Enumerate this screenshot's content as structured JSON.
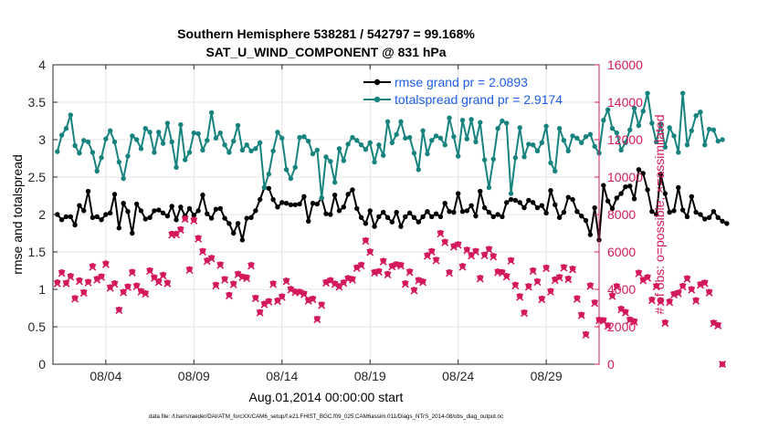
{
  "chart_data": {
    "type": "line",
    "title_line1": "Southern Hemisphere 538281 / 542797 = 99.168%",
    "title_line2": "SAT_U_WIND_COMPONENT @ 831 hPa",
    "xlabel": "Aug.01,2014 00:00:00 start",
    "ylabel_left": "rmse and totalspread",
    "ylabel_right": "# of obs: o=possible; ×=assimilated",
    "footnote": "data file: /Users/raeder/DAI/ATM_forcXX/CAM6_setup/f.e21.FHIST_BGC.f09_025.CAM6assim.011/Diags_NTrS_2014-08/obs_diag_output.nc",
    "xlim": [
      0,
      31
    ],
    "ylim_left": [
      0,
      4
    ],
    "ylim_right": [
      0,
      16000
    ],
    "x_ticks": [
      3,
      8,
      13,
      18,
      23,
      28
    ],
    "x_tick_labels": [
      "08/04",
      "08/09",
      "08/14",
      "08/19",
      "08/24",
      "08/29"
    ],
    "y_ticks_left": [
      0,
      0.5,
      1,
      1.5,
      2,
      2.5,
      3,
      3.5,
      4
    ],
    "y_tick_labels_left": [
      "0",
      "0.5",
      "1",
      "1.5",
      "2",
      "2.5",
      "3",
      "3.5",
      "4"
    ],
    "y_ticks_right": [
      0,
      2000,
      4000,
      6000,
      8000,
      10000,
      12000,
      14000,
      16000
    ],
    "y_tick_labels_right": [
      "0",
      "2000",
      "4000",
      "6000",
      "8000",
      "10000",
      "12000",
      "14000",
      "16000"
    ],
    "x_start": 0.25,
    "x_step": 0.25,
    "grid": true,
    "legend_position": "top-right",
    "series": [
      {
        "name": "rmse grand pr = 2.0893",
        "color": "#000000",
        "axis": "left",
        "marker": "circle",
        "values": [
          2.0,
          1.93,
          1.97,
          1.97,
          1.86,
          2.12,
          2.05,
          2.31,
          1.96,
          1.97,
          1.93,
          2.0,
          2.02,
          2.27,
          1.82,
          2.15,
          2.04,
          1.75,
          2.14,
          2.05,
          1.94,
          1.96,
          2.05,
          2.06,
          2.02,
          1.98,
          2.11,
          1.93,
          2.1,
          1.98,
          2.08,
          1.99,
          2.05,
          2.26,
          2.01,
          1.95,
          2.07,
          2.08,
          1.95,
          1.88,
          1.75,
          1.88,
          1.66,
          1.95,
          1.96,
          2.05,
          2.2,
          2.36,
          2.35,
          2.2,
          2.1,
          2.16,
          2.15,
          2.13,
          2.13,
          2.14,
          2.24,
          1.91,
          2.15,
          2.14,
          2.22,
          2.01,
          2.0,
          2.26,
          2.05,
          2.1,
          2.27,
          2.33,
          2.08,
          1.96,
          1.88,
          2.05,
          1.84,
          1.97,
          2.03,
          1.96,
          1.9,
          2.03,
          1.84,
          1.97,
          2.02,
          1.96,
          1.9,
          1.97,
          2.04,
          1.97,
          2.01,
          1.97,
          2.15,
          2.04,
          2.03,
          2.28,
          2.04,
          2.05,
          2.12,
          1.98,
          2.31,
          2.09,
          2.03,
          1.97,
          2.0,
          1.97,
          2.16,
          2.2,
          2.19,
          2.16,
          2.09,
          2.19,
          2.16,
          2.09,
          2.12,
          2.02,
          2.32,
          2.13,
          1.96,
          2.03,
          2.23,
          2.2,
          2.04,
          1.98,
          1.92,
          1.73,
          2.09,
          1.66,
          2.39,
          2.18,
          2.08,
          2.22,
          2.28,
          2.37,
          2.38,
          2.21,
          2.6,
          2.55,
          2.33,
          2.04,
          2.0,
          2.54,
          2.28,
          2.03,
          2.05,
          2.36,
          2.06,
          1.97,
          2.24,
          2.03,
          2.0,
          1.94,
          1.96,
          2.04,
          1.96,
          1.91,
          1.88
        ]
      },
      {
        "name": "totalspread grand pr = 2.9174",
        "color": "#17837f",
        "axis": "left",
        "marker": "circle",
        "values": [
          2.84,
          3.06,
          3.15,
          3.33,
          2.92,
          2.82,
          2.99,
          2.97,
          2.83,
          2.58,
          2.76,
          3.01,
          3.12,
          2.97,
          2.7,
          2.48,
          2.78,
          3.05,
          3.0,
          2.88,
          3.15,
          3.1,
          2.83,
          3.1,
          2.95,
          3.22,
          2.97,
          2.63,
          3.2,
          2.73,
          2.83,
          3.09,
          3.08,
          2.86,
          2.99,
          3.36,
          3.02,
          3.09,
          2.93,
          2.83,
          2.98,
          3.19,
          2.86,
          2.93,
          2.85,
          2.88,
          2.96,
          2.36,
          2.54,
          2.85,
          3.1,
          3.02,
          2.6,
          2.48,
          2.63,
          3.03,
          3.04,
          2.98,
          2.81,
          2.86,
          2.22,
          2.77,
          2.71,
          2.43,
          2.88,
          2.72,
          2.94,
          3.03,
          2.99,
          2.93,
          2.87,
          2.96,
          2.7,
          2.93,
          2.79,
          3.24,
          2.96,
          3.07,
          3.24,
          3.02,
          3.03,
          2.82,
          2.6,
          3.12,
          2.81,
          2.99,
          3.05,
          3.02,
          2.93,
          3.29,
          3.04,
          2.78,
          3.26,
          3.01,
          3.27,
          2.97,
          3.23,
          2.73,
          2.36,
          2.74,
          3.15,
          3.25,
          3.22,
          2.28,
          2.76,
          3.16,
          2.77,
          2.94,
          2.93,
          2.85,
          2.96,
          3.18,
          2.69,
          2.58,
          3.15,
          2.99,
          2.85,
          3.05,
          3.02,
          2.96,
          3.04,
          3.07,
          2.91,
          2.82,
          3.26,
          3.4,
          3.15,
          3.09,
          2.86,
          2.96,
          3.13,
          3.42,
          3.19,
          3.38,
          3.62,
          3.22,
          2.97,
          3.21,
          2.9,
          3.16,
          3.05,
          2.83,
          3.62,
          2.93,
          3.12,
          3.32,
          3.37,
          2.93,
          3.14,
          3.13,
          2.98,
          3.0
        ]
      },
      {
        "name": "# obs possible",
        "color": "#d3195c",
        "axis": "right",
        "marker": "circle",
        "legend": false,
        "values": [
          4380,
          4920,
          4350,
          4720,
          3540,
          4490,
          3850,
          4410,
          5250,
          4570,
          4700,
          5390,
          4120,
          4330,
          2920,
          3870,
          4160,
          4940,
          4210,
          3920,
          3800,
          5020,
          4650,
          4430,
          4780,
          4360,
          6980,
          6980,
          7220,
          7790,
          5080,
          7720,
          6750,
          6060,
          5550,
          5690,
          4250,
          5340,
          4560,
          3710,
          4310,
          4840,
          4690,
          4640,
          5310,
          3560,
          2790,
          3240,
          3380,
          4320,
          3410,
          3630,
          4470,
          4030,
          3890,
          3880,
          3780,
          3430,
          3510,
          2430,
          3200,
          4390,
          4500,
          4320,
          4180,
          4380,
          4610,
          4560,
          5180,
          5320,
          6630,
          6030,
          4930,
          4980,
          5530,
          4830,
          5260,
          5350,
          5310,
          4330,
          4960,
          3980,
          4510,
          4430,
          5830,
          6050,
          5590,
          7020,
          6550,
          4920,
          6320,
          6420,
          5250,
          6130,
          5840,
          6060,
          4620,
          5860,
          6170,
          5790,
          4960,
          4930,
          4720,
          5570,
          4250,
          3640,
          2770,
          4180,
          5020,
          4440,
          3510,
          5170,
          3920,
          4540,
          4670,
          5200,
          4580,
          5110,
          3530,
          2650,
          1610,
          4220,
          3310,
          2380,
          2360,
          2080,
          3680,
          4180,
          2970,
          2800,
          2390,
          2300,
          4900,
          4520,
          4660,
          3460,
          4190,
          3370,
          2240,
          3360,
          3760,
          3830,
          4190,
          4600,
          4020,
          3430,
          4280,
          4370,
          3870,
          2230,
          2100,
          0
        ]
      },
      {
        "name": "# obs assimilated",
        "color": "#d3195c",
        "axis": "right",
        "marker": "x",
        "legend": false,
        "values": [
          4300,
          4850,
          4300,
          4650,
          3480,
          4420,
          3800,
          4350,
          5180,
          4500,
          4640,
          5320,
          4060,
          4270,
          2870,
          3820,
          4100,
          4880,
          4150,
          3860,
          3740,
          4960,
          4590,
          4370,
          4720,
          4300,
          6900,
          6920,
          7160,
          7740,
          5020,
          7660,
          6690,
          6000,
          5490,
          5630,
          4190,
          5280,
          4500,
          3650,
          4250,
          4780,
          4630,
          4580,
          5250,
          3500,
          2740,
          3180,
          3320,
          4260,
          3350,
          3570,
          4410,
          3970,
          3830,
          3820,
          3720,
          3370,
          3450,
          2380,
          3140,
          4330,
          4440,
          4260,
          4120,
          4320,
          4550,
          4500,
          5120,
          5260,
          6570,
          5970,
          4870,
          4920,
          5470,
          4770,
          5200,
          5290,
          5250,
          4270,
          4900,
          3920,
          4450,
          4370,
          5770,
          5990,
          5530,
          6960,
          6490,
          4860,
          6260,
          6360,
          5190,
          6070,
          5780,
          6000,
          4560,
          5800,
          6110,
          5730,
          4900,
          4870,
          4660,
          5510,
          4190,
          3580,
          2720,
          4120,
          4960,
          4380,
          3450,
          5110,
          3860,
          4480,
          4610,
          5140,
          4520,
          5050,
          3470,
          2600,
          1560,
          4160,
          3250,
          2330,
          2310,
          2030,
          3620,
          4120,
          2910,
          2740,
          2340,
          2250,
          4840,
          4460,
          4600,
          3400,
          4130,
          3310,
          2180,
          3300,
          3700,
          3770,
          4130,
          4540,
          3960,
          3370,
          4220,
          4310,
          3810,
          2170,
          2050,
          0
        ]
      }
    ]
  }
}
